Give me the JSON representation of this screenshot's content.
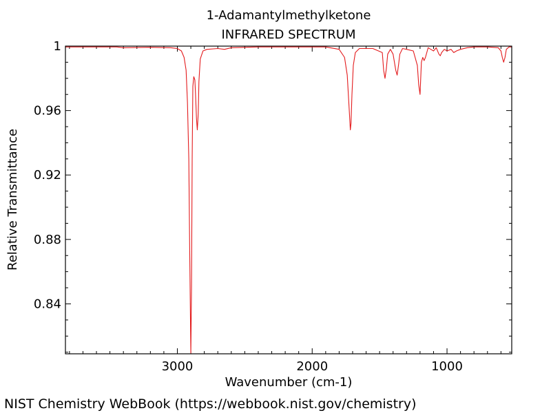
{
  "chart_data": {
    "type": "line",
    "title": "1-Adamantylmethylketone",
    "subtitle": "INFRARED SPECTRUM",
    "xlabel": "Wavenumber (cm-1)",
    "ylabel": "Relative Transmittance",
    "xlim": [
      3830,
      520
    ],
    "ylim": [
      0.809,
      1.0
    ],
    "x_ticks": [
      3000,
      2000,
      1000
    ],
    "x_tick_labels": [
      "3000",
      "2000",
      "1000"
    ],
    "y_ticks": [
      0.84,
      0.88,
      0.92,
      0.96,
      1.0
    ],
    "y_tick_labels": [
      "0.84",
      "0.88",
      "0.92",
      "0.96",
      "1"
    ],
    "grid": false,
    "legend": "none",
    "series": [
      {
        "color": "#e31a1c",
        "x": [
          3830,
          3600,
          3450,
          3400,
          3200,
          3050,
          3000,
          2970,
          2950,
          2935,
          2925,
          2915,
          2908,
          2900,
          2895,
          2890,
          2885,
          2878,
          2870,
          2865,
          2858,
          2852,
          2845,
          2840,
          2830,
          2810,
          2780,
          2700,
          2650,
          2600,
          2400,
          2100,
          1900,
          1800,
          1760,
          1740,
          1725,
          1717,
          1712,
          1705,
          1695,
          1680,
          1650,
          1550,
          1480,
          1470,
          1460,
          1450,
          1440,
          1420,
          1400,
          1380,
          1370,
          1360,
          1350,
          1330,
          1300,
          1250,
          1220,
          1210,
          1200,
          1195,
          1190,
          1180,
          1170,
          1160,
          1140,
          1120,
          1100,
          1080,
          1060,
          1050,
          1040,
          1020,
          1000,
          970,
          950,
          930,
          900,
          850,
          800,
          700,
          620,
          600,
          590,
          580,
          570,
          560,
          540,
          520
        ],
        "y": [
          0.9995,
          0.9995,
          0.9995,
          0.999,
          0.9993,
          0.999,
          0.9985,
          0.997,
          0.993,
          0.985,
          0.965,
          0.93,
          0.87,
          0.809,
          0.85,
          0.93,
          0.975,
          0.981,
          0.979,
          0.97,
          0.955,
          0.948,
          0.958,
          0.978,
          0.992,
          0.997,
          0.998,
          0.9985,
          0.998,
          0.999,
          0.9995,
          0.9995,
          0.9995,
          0.998,
          0.993,
          0.982,
          0.96,
          0.948,
          0.952,
          0.97,
          0.988,
          0.996,
          0.9985,
          0.9985,
          0.996,
          0.985,
          0.98,
          0.986,
          0.995,
          0.998,
          0.995,
          0.985,
          0.982,
          0.988,
          0.995,
          0.9985,
          0.998,
          0.997,
          0.988,
          0.976,
          0.97,
          0.98,
          0.99,
          0.993,
          0.991,
          0.993,
          0.999,
          0.998,
          0.997,
          0.999,
          0.995,
          0.994,
          0.996,
          0.998,
          0.997,
          0.998,
          0.996,
          0.997,
          0.998,
          0.999,
          0.9995,
          0.9995,
          0.999,
          0.997,
          0.993,
          0.99,
          0.993,
          0.998,
          0.9995,
          0.9995
        ]
      }
    ]
  },
  "footer": {
    "text": "NIST Chemistry WebBook (https://webbook.nist.gov/chemistry)"
  }
}
